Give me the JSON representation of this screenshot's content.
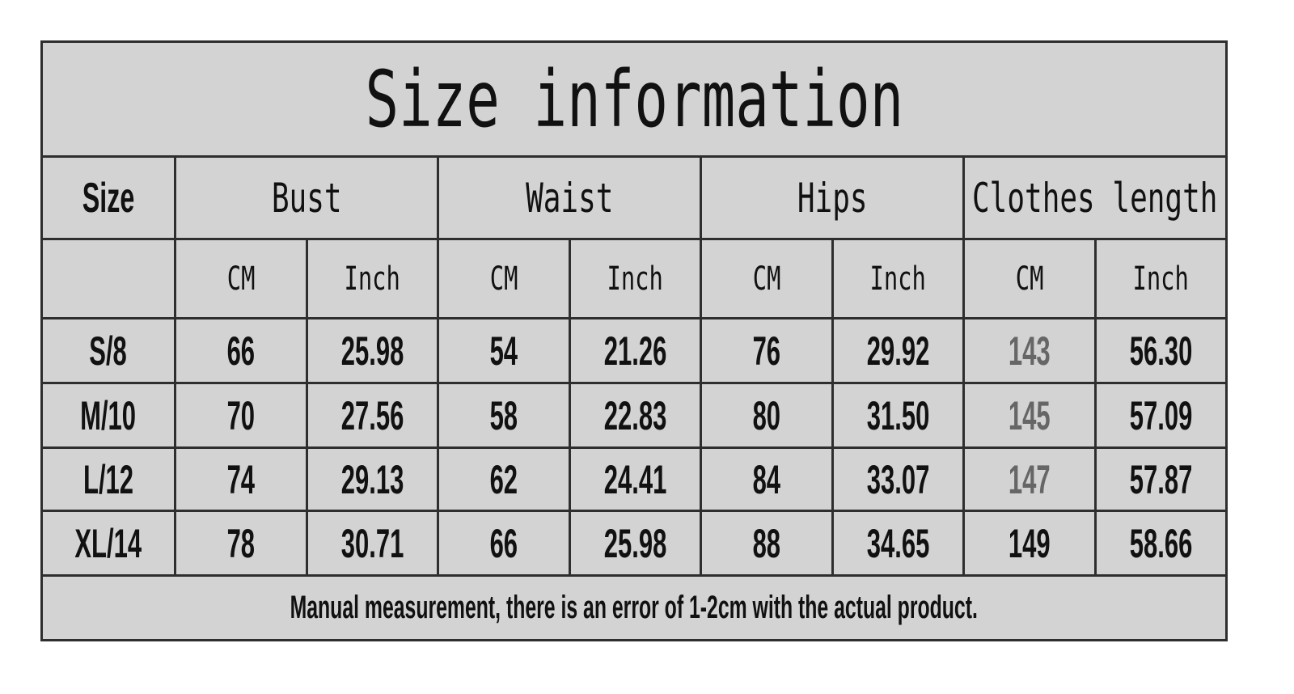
{
  "title": "Size information",
  "header": {
    "size": "Size",
    "groups": [
      "Bust",
      "Waist",
      "Hips",
      "Clothes length"
    ]
  },
  "units": [
    "CM",
    "Inch",
    "CM",
    "Inch",
    "CM",
    "Inch",
    "CM",
    "Inch"
  ],
  "rows": [
    [
      "S/8",
      "66",
      "25.98",
      "54",
      "21.26",
      "76",
      "29.92",
      "143",
      "56.30"
    ],
    [
      "M/10",
      "70",
      "27.56",
      "58",
      "22.83",
      "80",
      "31.50",
      "145",
      "57.09"
    ],
    [
      "L/12",
      "74",
      "29.13",
      "62",
      "24.41",
      "84",
      "33.07",
      "147",
      "57.87"
    ],
    [
      "XL/14",
      "78",
      "30.71",
      "66",
      "25.98",
      "88",
      "34.65",
      "149",
      "58.66"
    ]
  ],
  "note": "Manual measurement, there is an error of 1-2cm with the actual product."
}
